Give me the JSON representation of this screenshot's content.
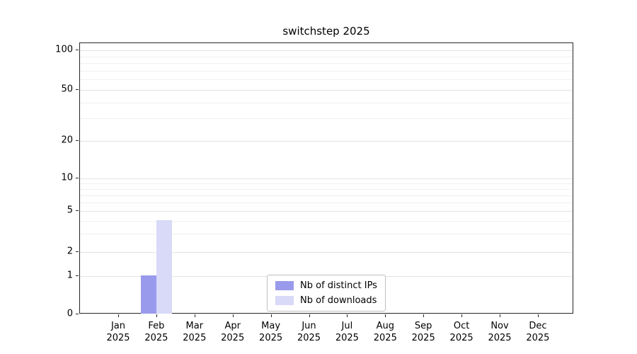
{
  "chart_data": {
    "type": "bar",
    "title": "switchstep 2025",
    "categories": [
      "Jan 2025",
      "Feb 2025",
      "Mar 2025",
      "Apr 2025",
      "May 2025",
      "Jun 2025",
      "Jul 2025",
      "Aug 2025",
      "Sep 2025",
      "Oct 2025",
      "Nov 2025",
      "Dec 2025"
    ],
    "series": [
      {
        "name": "Nb of distinct IPs",
        "color": "#9a9aec",
        "values": [
          0,
          1,
          0,
          0,
          0,
          0,
          0,
          0,
          0,
          0,
          0,
          0
        ]
      },
      {
        "name": "Nb of downloads",
        "color": "#d9d9f8",
        "values": [
          0,
          4,
          0,
          0,
          0,
          0,
          0,
          0,
          0,
          0,
          0,
          0
        ]
      }
    ],
    "yscale": "log-like (0 pinned at baseline)",
    "yticks": [
      0,
      1,
      2,
      5,
      10,
      20,
      50,
      100
    ],
    "ylim": [
      0,
      110
    ],
    "xlabel": "",
    "ylabel": "",
    "grid": "horizontal",
    "legend_position": "lower center"
  }
}
